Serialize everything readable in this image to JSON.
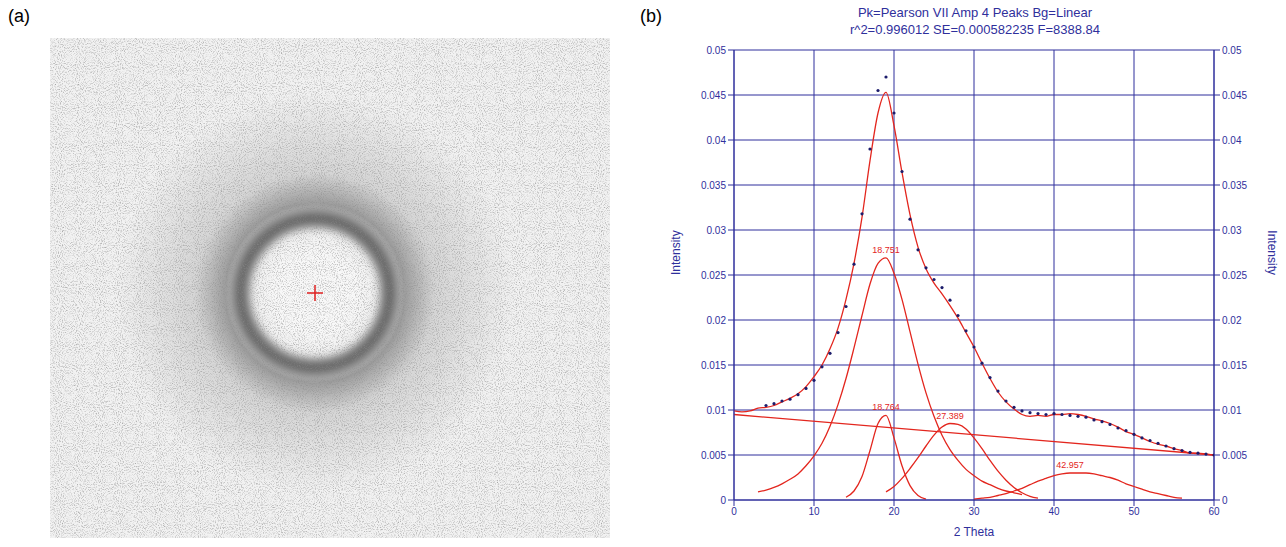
{
  "panel_labels": [
    "(a)",
    "(b)"
  ],
  "chart_data": {
    "type": "line",
    "title": "Pk=Pearson VII Amp 4 Peaks Bg=Linear",
    "subtitle": "r^2=0.996012 SE=0.000582235 F=8388.84",
    "x_label": "2 Theta",
    "y_label": "Intensity",
    "y2_label": "Intensity",
    "xlim": [
      0,
      60
    ],
    "xticks": [
      0,
      10,
      20,
      30,
      40,
      50,
      60
    ],
    "ylim": [
      0,
      0.05
    ],
    "yticks": [
      0,
      0.005,
      0.01,
      0.015,
      0.02,
      0.025,
      0.03,
      0.035,
      0.04,
      0.045,
      0.05
    ],
    "y2lim": [
      0,
      0.05
    ],
    "y2ticks": [
      0,
      0.005,
      0.01,
      0.015,
      0.02,
      0.025,
      0.03,
      0.035,
      0.04,
      0.045,
      0.05
    ],
    "grid": true,
    "series": [
      {
        "type": "scatter",
        "color": "#1c1c6b",
        "marker": "circle",
        "x": [
          4,
          5,
          6,
          7,
          8,
          9,
          10,
          11,
          12,
          13,
          14,
          15,
          16,
          17,
          18,
          19,
          20,
          21,
          22,
          23,
          24,
          25,
          26,
          27,
          28,
          29,
          30,
          31,
          32,
          33,
          34,
          35,
          36,
          37,
          38,
          39,
          40,
          41,
          42,
          43,
          44,
          45,
          46,
          47,
          48,
          49,
          50,
          51,
          52,
          53,
          54,
          55,
          56,
          57,
          58,
          59,
          60
        ],
        "values": [
          0.0105,
          0.0107,
          0.011,
          0.0112,
          0.0117,
          0.0124,
          0.0133,
          0.0148,
          0.0163,
          0.0186,
          0.0215,
          0.0262,
          0.0318,
          0.039,
          0.0455,
          0.047,
          0.043,
          0.0365,
          0.0312,
          0.0278,
          0.0258,
          0.0245,
          0.0236,
          0.0222,
          0.0205,
          0.0188,
          0.017,
          0.0152,
          0.0136,
          0.0121,
          0.011,
          0.0103,
          0.0099,
          0.0097,
          0.0096,
          0.0095,
          0.0096,
          0.0095,
          0.0094,
          0.0093,
          0.0092,
          0.0089,
          0.0087,
          0.0084,
          0.008,
          0.0077,
          0.0073,
          0.0069,
          0.0066,
          0.0063,
          0.006,
          0.0057,
          0.0055,
          0.0053,
          0.0052,
          0.0051,
          0.005
        ]
      },
      {
        "type": "line",
        "color": "#e3261e",
        "line_style": "solid",
        "x": [
          0,
          1,
          2,
          3,
          4,
          5,
          6,
          7,
          8,
          9,
          10,
          11,
          12,
          13,
          14,
          15,
          16,
          17,
          18,
          19,
          20,
          21,
          22,
          23,
          24,
          25,
          26,
          27,
          28,
          29,
          30,
          31,
          32,
          33,
          34,
          35,
          36,
          37,
          38,
          39,
          40,
          41,
          42,
          43,
          44,
          45,
          46,
          47,
          48,
          49,
          50,
          51,
          52,
          53,
          54,
          55,
          56,
          57,
          58,
          59,
          60
        ],
        "values": [
          0.0099,
          0.0098,
          0.0099,
          0.0102,
          0.0103,
          0.0105,
          0.0109,
          0.0113,
          0.0118,
          0.0126,
          0.0137,
          0.015,
          0.0168,
          0.0191,
          0.0223,
          0.0263,
          0.0314,
          0.0377,
          0.043,
          0.0453,
          0.0416,
          0.0364,
          0.0317,
          0.0281,
          0.0257,
          0.0241,
          0.0229,
          0.0216,
          0.0202,
          0.0186,
          0.017,
          0.0152,
          0.0135,
          0.012,
          0.0109,
          0.0101,
          0.0095,
          0.0093,
          0.0094,
          0.0093,
          0.0095,
          0.0095,
          0.0096,
          0.0095,
          0.0093,
          0.009,
          0.0088,
          0.0085,
          0.0081,
          0.0076,
          0.0073,
          0.0069,
          0.0065,
          0.0062,
          0.006,
          0.0057,
          0.0055,
          0.0052,
          0.0052,
          0.0051,
          0.005
        ]
      },
      {
        "type": "line",
        "color": "#e3261e",
        "line_style": "solid",
        "label": "18.751",
        "x": [
          3,
          4,
          5,
          6,
          7,
          8,
          9,
          10,
          11,
          12,
          13,
          14,
          15,
          16,
          17,
          18,
          19,
          20,
          21,
          22,
          23,
          24,
          25,
          26,
          27,
          28,
          29,
          30,
          31,
          32,
          33,
          34,
          35,
          36
        ],
        "values": [
          0.0009,
          0.0011,
          0.0014,
          0.0018,
          0.0023,
          0.0029,
          0.0038,
          0.0049,
          0.0063,
          0.0082,
          0.0106,
          0.0135,
          0.0169,
          0.0205,
          0.024,
          0.0263,
          0.0269,
          0.0252,
          0.0223,
          0.0187,
          0.0151,
          0.0119,
          0.0093,
          0.0072,
          0.0056,
          0.0044,
          0.0034,
          0.0027,
          0.0021,
          0.0017,
          0.0013,
          0.001,
          0.0008,
          0.0006
        ]
      },
      {
        "type": "line",
        "color": "#e3261e",
        "line_style": "solid",
        "label": "18.764",
        "x": [
          14,
          15,
          16,
          17,
          18,
          19,
          20,
          21,
          22,
          23,
          24
        ],
        "values": [
          0.0003,
          0.001,
          0.0026,
          0.0055,
          0.0085,
          0.0094,
          0.0069,
          0.0038,
          0.0016,
          0.0005,
          0.0001
        ]
      },
      {
        "type": "line",
        "color": "#e3261e",
        "line_style": "solid",
        "label": "27.389",
        "x": [
          19,
          20,
          21,
          22,
          23,
          24,
          25,
          26,
          27,
          28,
          29,
          30,
          31,
          32,
          33,
          34,
          35,
          36,
          37,
          38
        ],
        "values": [
          0.0009,
          0.0015,
          0.0024,
          0.0035,
          0.0047,
          0.006,
          0.0072,
          0.0081,
          0.0085,
          0.0084,
          0.0079,
          0.0069,
          0.0057,
          0.0044,
          0.0032,
          0.0022,
          0.0014,
          0.0008,
          0.0004,
          0.0002
        ]
      },
      {
        "type": "line",
        "color": "#e3261e",
        "line_style": "solid",
        "label": "42.957",
        "x": [
          30,
          31,
          32,
          33,
          34,
          35,
          36,
          37,
          38,
          39,
          40,
          41,
          42,
          43,
          44,
          45,
          46,
          47,
          48,
          49,
          50,
          51,
          52,
          53,
          54,
          55,
          56
        ],
        "values": [
          0.0001,
          0.0002,
          0.0003,
          0.0005,
          0.0007,
          0.001,
          0.0013,
          0.0017,
          0.0021,
          0.0024,
          0.0027,
          0.0029,
          0.003,
          0.003,
          0.003,
          0.0029,
          0.0027,
          0.0025,
          0.0022,
          0.0018,
          0.0015,
          0.0012,
          0.0009,
          0.0007,
          0.0005,
          0.0003,
          0.0002
        ]
      },
      {
        "type": "line",
        "color": "#e3261e",
        "line_style": "solid",
        "axis": "y2",
        "x": [
          0,
          60
        ],
        "values": [
          0.0095,
          0.005
        ]
      }
    ]
  }
}
